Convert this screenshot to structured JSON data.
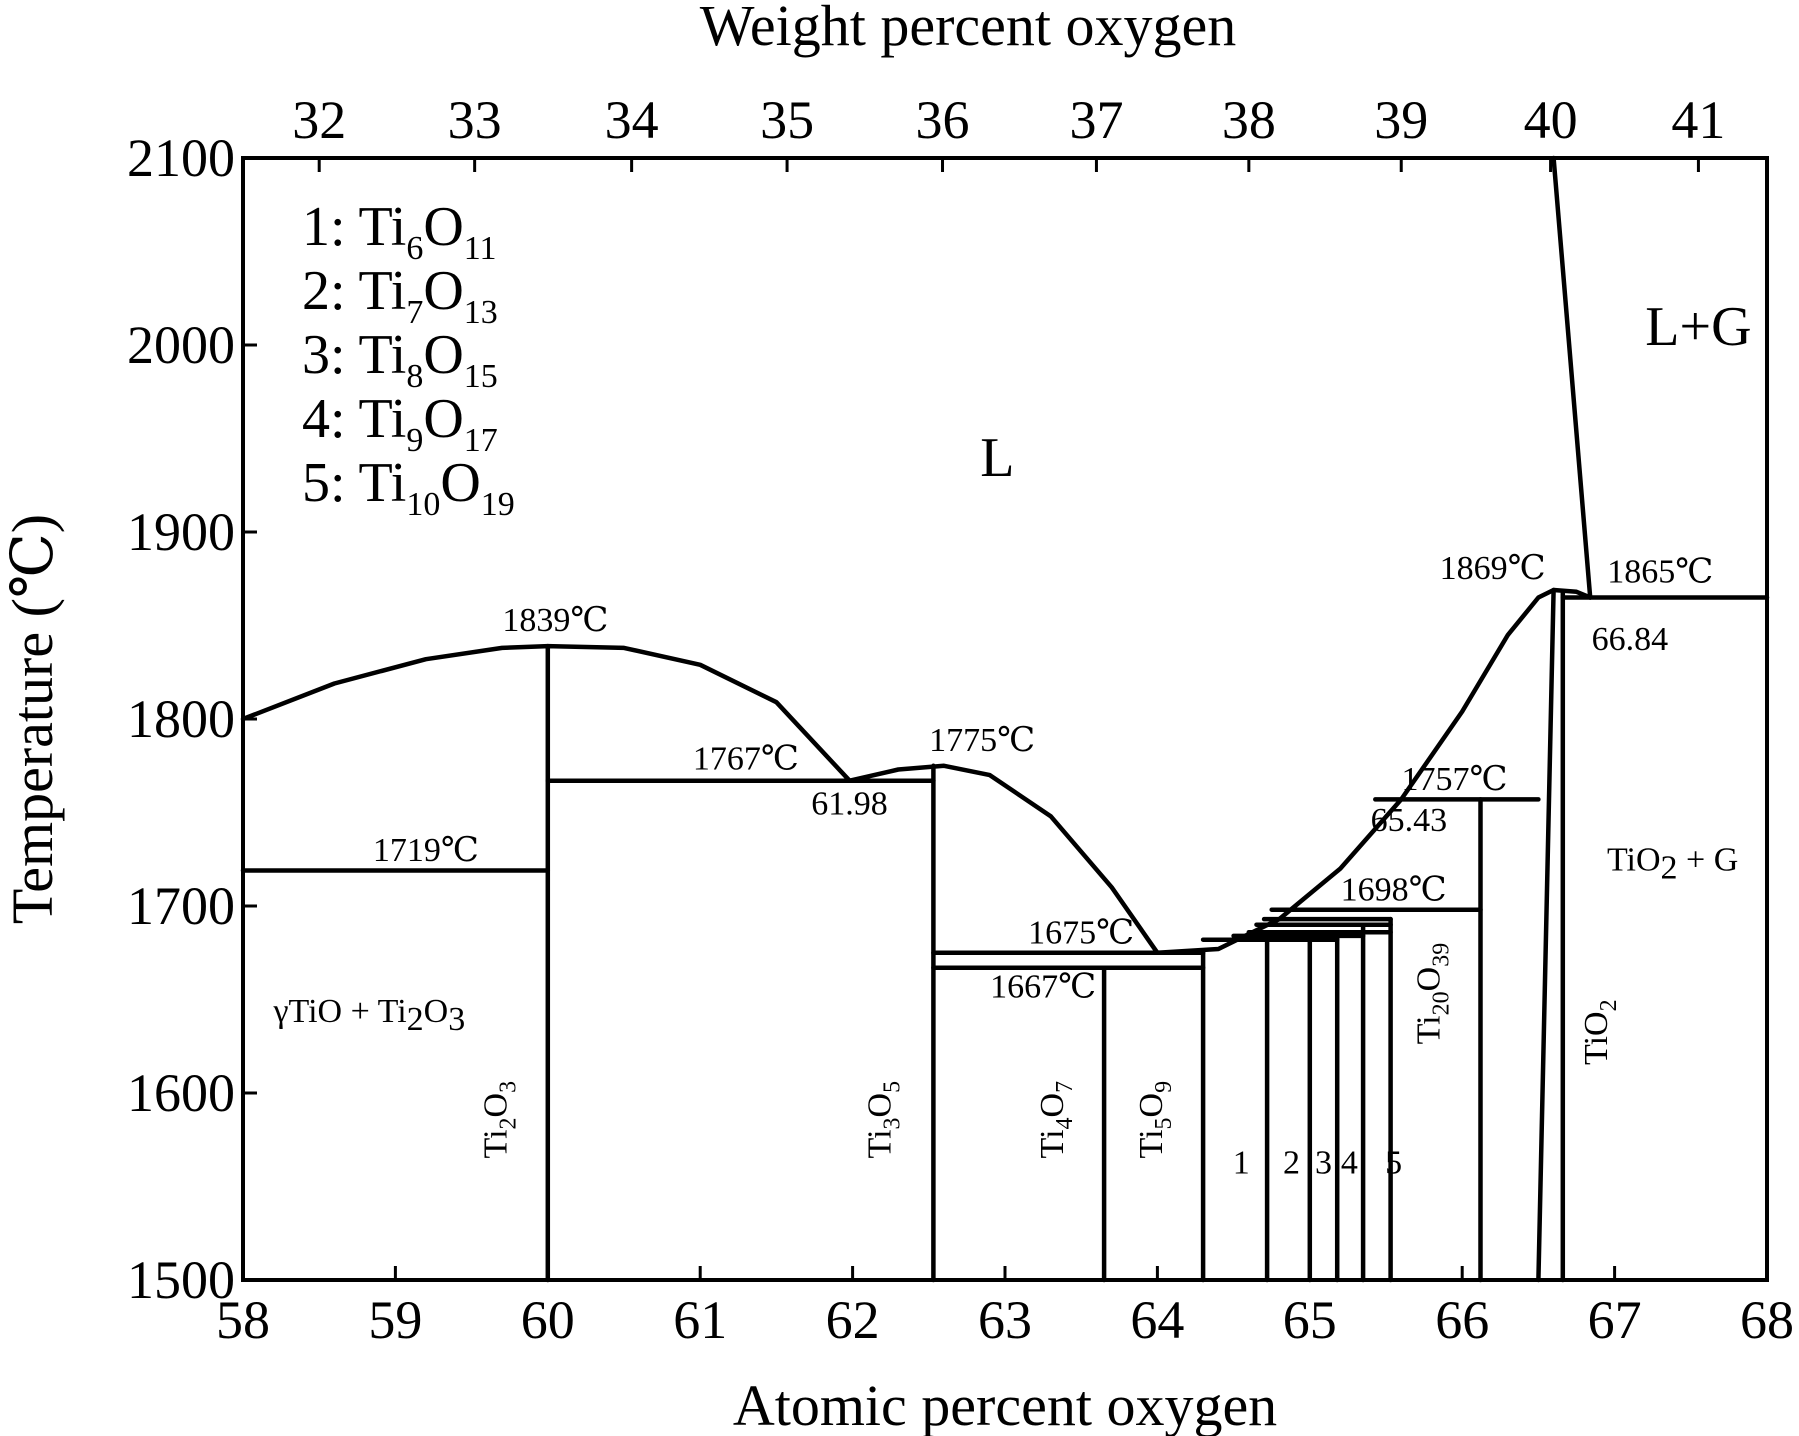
{
  "chart_data": {
    "type": "line",
    "xlabel": "Atomic percent oxygen",
    "ylabel": "Temperature (℃)",
    "x2label": "Weight percent oxygen",
    "xlim": [
      58,
      68
    ],
    "ylim": [
      1500,
      2100
    ],
    "x_ticks": [
      58,
      59,
      60,
      61,
      62,
      63,
      64,
      65,
      66,
      67,
      68
    ],
    "y_ticks": [
      1500,
      1600,
      1700,
      1800,
      1900,
      2000,
      2100
    ],
    "x2_ticks": [
      {
        "label": "32",
        "x": 58.5
      },
      {
        "label": "33",
        "x": 59.52
      },
      {
        "label": "34",
        "x": 60.55
      },
      {
        "label": "35",
        "x": 61.57
      },
      {
        "label": "36",
        "x": 62.59
      },
      {
        "label": "37",
        "x": 63.6
      },
      {
        "label": "38",
        "x": 64.6
      },
      {
        "label": "39",
        "x": 65.6
      },
      {
        "label": "40",
        "x": 66.58
      },
      {
        "label": "41",
        "x": 67.55
      }
    ],
    "line_color": "#000000",
    "series": [
      {
        "points": [
          [
            58.0,
            1800
          ],
          [
            58.6,
            1819
          ],
          [
            59.2,
            1832
          ],
          [
            59.7,
            1838
          ],
          [
            60.0,
            1839
          ],
          [
            60.5,
            1838
          ],
          [
            61.0,
            1829
          ],
          [
            61.5,
            1809
          ],
          [
            61.98,
            1767
          ]
        ]
      },
      {
        "points": [
          [
            61.98,
            1767
          ],
          [
            62.3,
            1773
          ],
          [
            62.6,
            1775
          ],
          [
            62.9,
            1770
          ],
          [
            63.3,
            1748
          ],
          [
            63.7,
            1710
          ],
          [
            64.0,
            1675
          ],
          [
            64.4,
            1677
          ],
          [
            64.8,
            1693
          ],
          [
            65.2,
            1720
          ],
          [
            65.6,
            1757
          ],
          [
            66.0,
            1804
          ],
          [
            66.3,
            1845
          ],
          [
            66.5,
            1865
          ],
          [
            66.6,
            1869
          ],
          [
            66.75,
            1868
          ],
          [
            66.84,
            1865
          ]
        ]
      },
      {
        "points": [
          [
            66.6,
            2100
          ],
          [
            66.84,
            1865
          ]
        ]
      },
      {
        "points": [
          [
            66.6,
            1869
          ],
          [
            66.5,
            1500
          ]
        ]
      },
      {
        "points": [
          [
            60.0,
            1500
          ],
          [
            60.0,
            1839
          ]
        ]
      },
      {
        "points": [
          [
            62.53,
            1500
          ],
          [
            62.53,
            1775
          ]
        ]
      },
      {
        "points": [
          [
            63.65,
            1500
          ],
          [
            63.65,
            1667
          ]
        ]
      },
      {
        "points": [
          [
            64.3,
            1500
          ],
          [
            64.3,
            1675
          ]
        ]
      },
      {
        "points": [
          [
            64.72,
            1500
          ],
          [
            64.72,
            1682
          ]
        ]
      },
      {
        "points": [
          [
            65.0,
            1500
          ],
          [
            65.0,
            1684
          ]
        ]
      },
      {
        "points": [
          [
            65.18,
            1500
          ],
          [
            65.18,
            1686
          ]
        ]
      },
      {
        "points": [
          [
            65.35,
            1500
          ],
          [
            65.35,
            1690
          ]
        ]
      },
      {
        "points": [
          [
            65.53,
            1500
          ],
          [
            65.53,
            1693
          ]
        ]
      },
      {
        "points": [
          [
            66.12,
            1500
          ],
          [
            66.12,
            1757
          ]
        ]
      },
      {
        "points": [
          [
            66.66,
            1500
          ],
          [
            66.66,
            1868
          ]
        ]
      },
      {
        "points": [
          [
            58.0,
            1719
          ],
          [
            60.0,
            1719
          ]
        ]
      },
      {
        "points": [
          [
            60.0,
            1767
          ],
          [
            62.53,
            1767
          ]
        ]
      },
      {
        "points": [
          [
            62.53,
            1675
          ],
          [
            64.3,
            1675
          ]
        ]
      },
      {
        "points": [
          [
            62.53,
            1667
          ],
          [
            64.3,
            1667
          ]
        ]
      },
      {
        "points": [
          [
            64.3,
            1682
          ],
          [
            65.18,
            1682
          ]
        ]
      },
      {
        "points": [
          [
            64.5,
            1684
          ],
          [
            65.35,
            1684
          ]
        ]
      },
      {
        "points": [
          [
            64.6,
            1686
          ],
          [
            65.53,
            1686
          ]
        ]
      },
      {
        "points": [
          [
            64.65,
            1690
          ],
          [
            65.53,
            1690
          ]
        ]
      },
      {
        "points": [
          [
            64.7,
            1693
          ],
          [
            65.53,
            1693
          ]
        ]
      },
      {
        "points": [
          [
            64.75,
            1698
          ],
          [
            66.12,
            1698
          ]
        ]
      },
      {
        "points": [
          [
            65.43,
            1757
          ],
          [
            66.5,
            1757
          ]
        ]
      },
      {
        "points": [
          [
            66.66,
            1865
          ],
          [
            68.0,
            1865
          ]
        ]
      }
    ],
    "annotations": [
      {
        "text": "1839℃",
        "x": 60.05,
        "y": 1847
      },
      {
        "text": "1767℃",
        "x": 61.3,
        "y": 1773
      },
      {
        "text": "61.98",
        "x": 61.98,
        "y": 1749
      },
      {
        "text": "1775℃",
        "x": 62.85,
        "y": 1783
      },
      {
        "text": "1719℃",
        "x": 59.2,
        "y": 1724
      },
      {
        "text": "1675℃",
        "x": 63.5,
        "y": 1680
      },
      {
        "text": "1667℃",
        "x": 63.25,
        "y": 1651
      },
      {
        "text": "1698℃",
        "x": 65.55,
        "y": 1703
      },
      {
        "text": "1757℃",
        "x": 65.95,
        "y": 1762
      },
      {
        "text": "65.43",
        "x": 65.65,
        "y": 1740
      },
      {
        "text": "1869℃",
        "x": 66.2,
        "y": 1875
      },
      {
        "text": "1865℃",
        "x": 67.3,
        "y": 1873
      },
      {
        "text": "66.84",
        "x": 67.1,
        "y": 1837
      },
      {
        "text": "1",
        "x": 64.55,
        "y": 1557
      },
      {
        "text": "2",
        "x": 64.88,
        "y": 1557
      },
      {
        "text": "3",
        "x": 65.09,
        "y": 1557
      },
      {
        "text": "4",
        "x": 65.26,
        "y": 1557
      },
      {
        "text": "5",
        "x": 65.55,
        "y": 1557
      }
    ],
    "regions": [
      {
        "text": "L",
        "x": 62.95,
        "y": 1930
      },
      {
        "text": "L+G",
        "x": 67.55,
        "y": 2000
      }
    ],
    "phase_fields": [
      {
        "main": "γTiO + Ti",
        "sub": "2",
        "post": "O",
        "sub2": "3",
        "x": 58.2,
        "y": 1638
      },
      {
        "main": "TiO",
        "sub": "2",
        "post": " + G",
        "sub2": "",
        "x": 66.95,
        "y": 1719
      }
    ],
    "phase_labels": [
      {
        "parts": [
          [
            "Ti",
            ""
          ],
          [
            "2",
            "s"
          ],
          [
            "O",
            ""
          ],
          [
            "3",
            "s"
          ]
        ],
        "x": 59.73,
        "y": 1565
      },
      {
        "parts": [
          [
            "Ti",
            ""
          ],
          [
            "3",
            "s"
          ],
          [
            "O",
            ""
          ],
          [
            "5",
            "s"
          ]
        ],
        "x": 62.25,
        "y": 1565
      },
      {
        "parts": [
          [
            "Ti",
            ""
          ],
          [
            "4",
            "s"
          ],
          [
            "O",
            ""
          ],
          [
            "7",
            "s"
          ]
        ],
        "x": 63.38,
        "y": 1565
      },
      {
        "parts": [
          [
            "Ti",
            ""
          ],
          [
            "5",
            "s"
          ],
          [
            "O",
            ""
          ],
          [
            "9",
            "s"
          ]
        ],
        "x": 64.03,
        "y": 1565
      },
      {
        "parts": [
          [
            "Ti",
            ""
          ],
          [
            "20",
            "s"
          ],
          [
            "O",
            ""
          ],
          [
            "39",
            "s"
          ]
        ],
        "x": 65.85,
        "y": 1626
      },
      {
        "parts": [
          [
            "TiO",
            ""
          ],
          [
            "2",
            "s"
          ]
        ],
        "x": 66.95,
        "y": 1615
      }
    ],
    "legend_entries": [
      {
        "num": "1: Ti",
        "a": "6",
        "o": "O",
        "b": "11"
      },
      {
        "num": "2: Ti",
        "a": "7",
        "o": "O",
        "b": "13"
      },
      {
        "num": "3: Ti",
        "a": "8",
        "o": "O",
        "b": "15"
      },
      {
        "num": "4: Ti",
        "a": "9",
        "o": "O",
        "b": "17"
      },
      {
        "num": "5: Ti",
        "a": "10",
        "o": "O",
        "b": "19"
      }
    ]
  }
}
